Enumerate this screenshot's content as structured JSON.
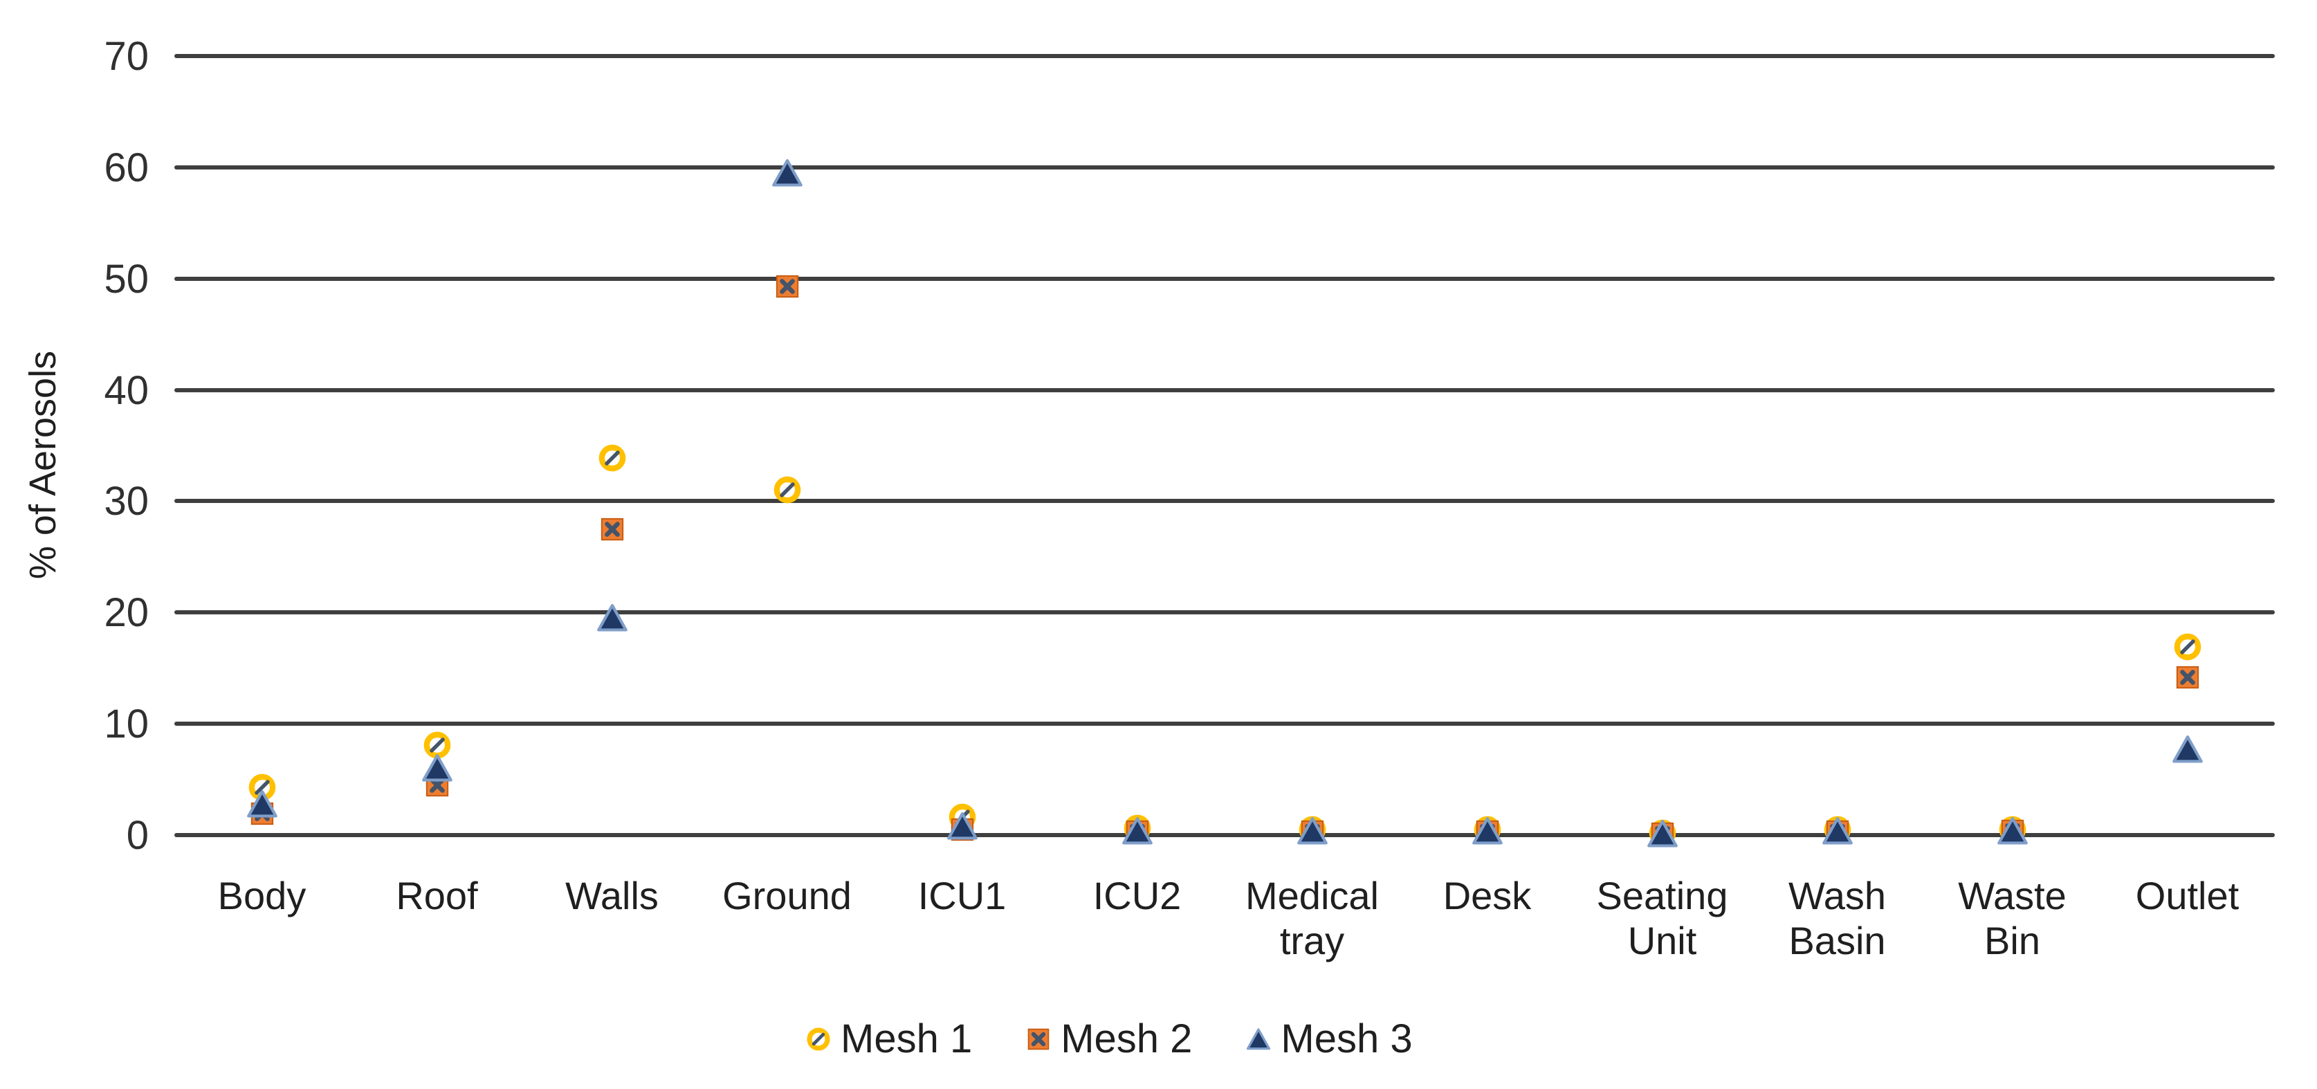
{
  "chart_data": {
    "type": "scatter",
    "title": "",
    "ylabel": "% of Aerosols",
    "xlabel": "",
    "ylim": [
      0,
      70
    ],
    "ytick_step": 10,
    "yticks": [
      0,
      10,
      20,
      30,
      40,
      50,
      60,
      70
    ],
    "grid": true,
    "legend_position": "bottom",
    "categories": [
      "Body",
      "Roof",
      "Walls",
      "Ground",
      "ICU1",
      "ICU2",
      "Medical tray",
      "Desk",
      "Seating Unit",
      "Wash Basin",
      "Waste Bin",
      "Outlet"
    ],
    "series": [
      {
        "name": "Mesh 1",
        "marker": "circle-slash",
        "color": "#FFC000",
        "detail_color": "#44546A",
        "values": [
          4.3,
          8.1,
          33.9,
          31.0,
          1.6,
          0.6,
          0.5,
          0.5,
          0.2,
          0.5,
          0.5,
          16.9
        ]
      },
      {
        "name": "Mesh 2",
        "marker": "square-x",
        "color": "#ED7D31",
        "detail_color": "#44546A",
        "values": [
          1.9,
          4.5,
          27.5,
          49.3,
          0.5,
          0.3,
          0.3,
          0.3,
          0.1,
          0.3,
          0.4,
          14.2
        ]
      },
      {
        "name": "Mesh 3",
        "marker": "triangle",
        "color": "#1F3864",
        "detail_color": "#7F9EC9",
        "values": [
          2.8,
          6.0,
          19.5,
          59.5,
          0.8,
          0.4,
          0.4,
          0.4,
          0.1,
          0.4,
          0.4,
          7.7
        ]
      }
    ],
    "gridline_color": "#3f3f3f"
  }
}
